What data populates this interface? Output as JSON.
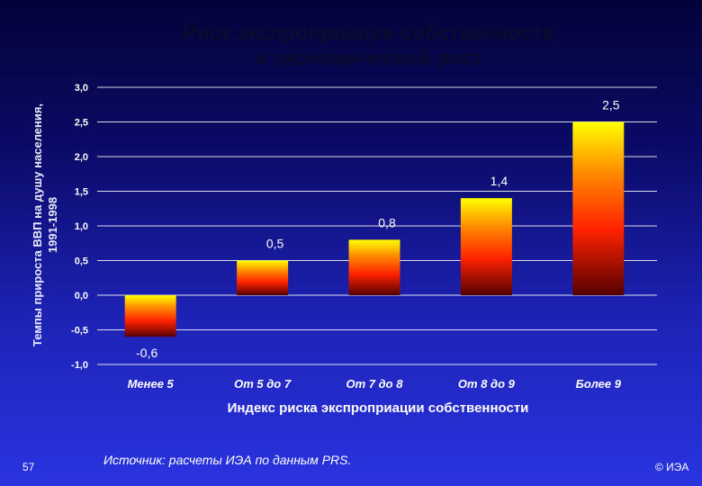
{
  "page": {
    "page_number": "57",
    "source": "Источник:  расчеты ИЭА по данным PRS.",
    "copyright": "© ИЭА"
  },
  "chart_data": {
    "type": "bar",
    "title": [
      "Риск экспроприации собственности",
      "и экономический рост"
    ],
    "ylabel": [
      "Темпы прироста ВВП на душу населения,",
      "1991-1998"
    ],
    "xlabel": "Индекс риска экспроприации собственности",
    "categories": [
      "Менее 5",
      "От 5 до 7",
      "От 7 до 8",
      "От 8 до 9",
      "Более 9"
    ],
    "values": [
      -0.6,
      0.5,
      0.8,
      1.4,
      2.5
    ],
    "data_labels": [
      "-0,6",
      "0,5",
      "0,8",
      "1,4",
      "2,5"
    ],
    "yticks": [
      3.0,
      2.5,
      2.0,
      1.5,
      1.0,
      0.5,
      0.0,
      -0.5,
      -1.0
    ],
    "ytick_labels": [
      "3,0",
      "2,5",
      "2,0",
      "1,5",
      "1,0",
      "0,5",
      "0,0",
      "-0,5",
      "-1,0"
    ],
    "ylim": [
      -1.0,
      3.0
    ],
    "grid": true,
    "bar_gradient": [
      "#ffff00",
      "#ff8800",
      "#ff2200",
      "#550000"
    ],
    "gridline_color": "#ffffff"
  }
}
